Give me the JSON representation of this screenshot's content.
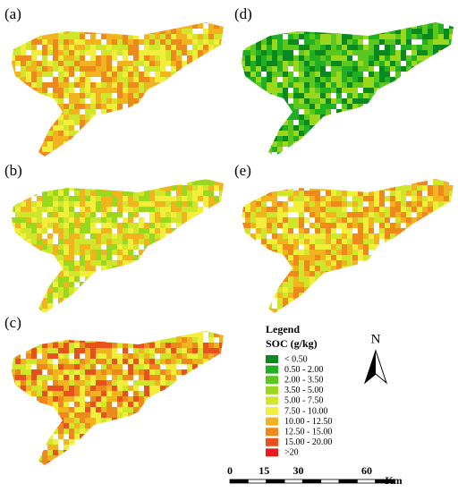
{
  "panels": [
    {
      "label": "(a)"
    },
    {
      "label": "(b)"
    },
    {
      "label": "(c)"
    },
    {
      "label": "(d)"
    },
    {
      "label": "(e)"
    }
  ],
  "legend": {
    "title": "Legend",
    "subtitle": "SOC (g/kg)",
    "items": [
      {
        "label": "< 0.50",
        "color": "#0a8a1e"
      },
      {
        "label": "0.50 - 2.00",
        "color": "#21b021"
      },
      {
        "label": "2.00 - 3.50",
        "color": "#5cc81e"
      },
      {
        "label": "3.50 - 5.00",
        "color": "#9ad81e"
      },
      {
        "label": "5.00 - 7.50",
        "color": "#cfe62a"
      },
      {
        "label": "7.50 - 10.00",
        "color": "#f2ee3a"
      },
      {
        "label": "10.00 - 12.50",
        "color": "#f2b41e"
      },
      {
        "label": "12.50 - 15.00",
        "color": "#ee8a1c"
      },
      {
        "label": "15.00 - 20.00",
        "color": "#e8501c"
      },
      {
        "label": ">20",
        "color": "#e81c1c"
      }
    ]
  },
  "north": "N",
  "scale": {
    "ticks": [
      0,
      15,
      30,
      60
    ],
    "unit": "Km"
  }
}
